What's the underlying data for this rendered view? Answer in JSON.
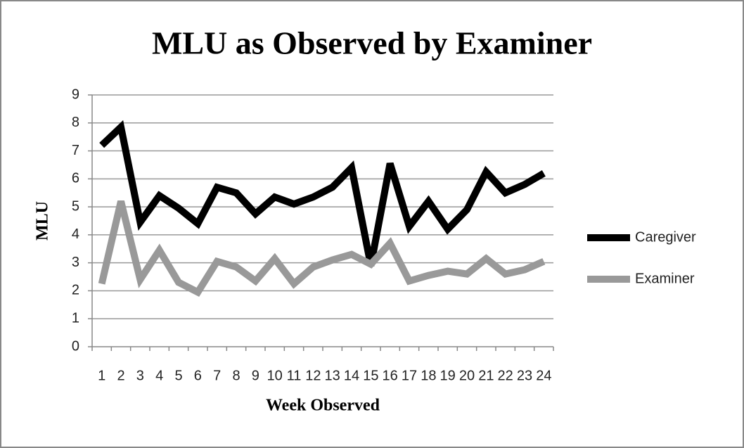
{
  "chart_data": {
    "type": "line",
    "title": "MLU as Observed by Examiner",
    "x_label": "Week Observed",
    "y_label": "MLU",
    "categories": [
      "1",
      "2",
      "3",
      "4",
      "5",
      "6",
      "7",
      "8",
      "9",
      "10",
      "11",
      "12",
      "13",
      "14",
      "15",
      "16",
      "17",
      "18",
      "19",
      "20",
      "21",
      "22",
      "23",
      "24"
    ],
    "series": [
      {
        "name": "Caregiver",
        "color": "#000000",
        "values": [
          7.2,
          7.85,
          4.45,
          5.4,
          4.95,
          4.4,
          5.7,
          5.5,
          4.75,
          5.35,
          5.1,
          5.35,
          5.7,
          6.4,
          2.9,
          6.55,
          4.3,
          5.2,
          4.2,
          4.9,
          6.25,
          5.5,
          5.8,
          6.2
        ]
      },
      {
        "name": "Examiner",
        "color": "#999999",
        "values": [
          2.25,
          5.2,
          2.4,
          3.45,
          2.3,
          1.95,
          3.05,
          2.85,
          2.35,
          3.15,
          2.25,
          2.85,
          3.1,
          3.3,
          2.95,
          3.7,
          2.35,
          2.55,
          2.7,
          2.6,
          3.15,
          2.6,
          2.75,
          3.05
        ]
      }
    ],
    "ylim": [
      0,
      9
    ],
    "yticks": [
      0,
      1,
      2,
      3,
      4,
      5,
      6,
      7,
      8,
      9
    ],
    "grid": true,
    "legend": "right"
  }
}
